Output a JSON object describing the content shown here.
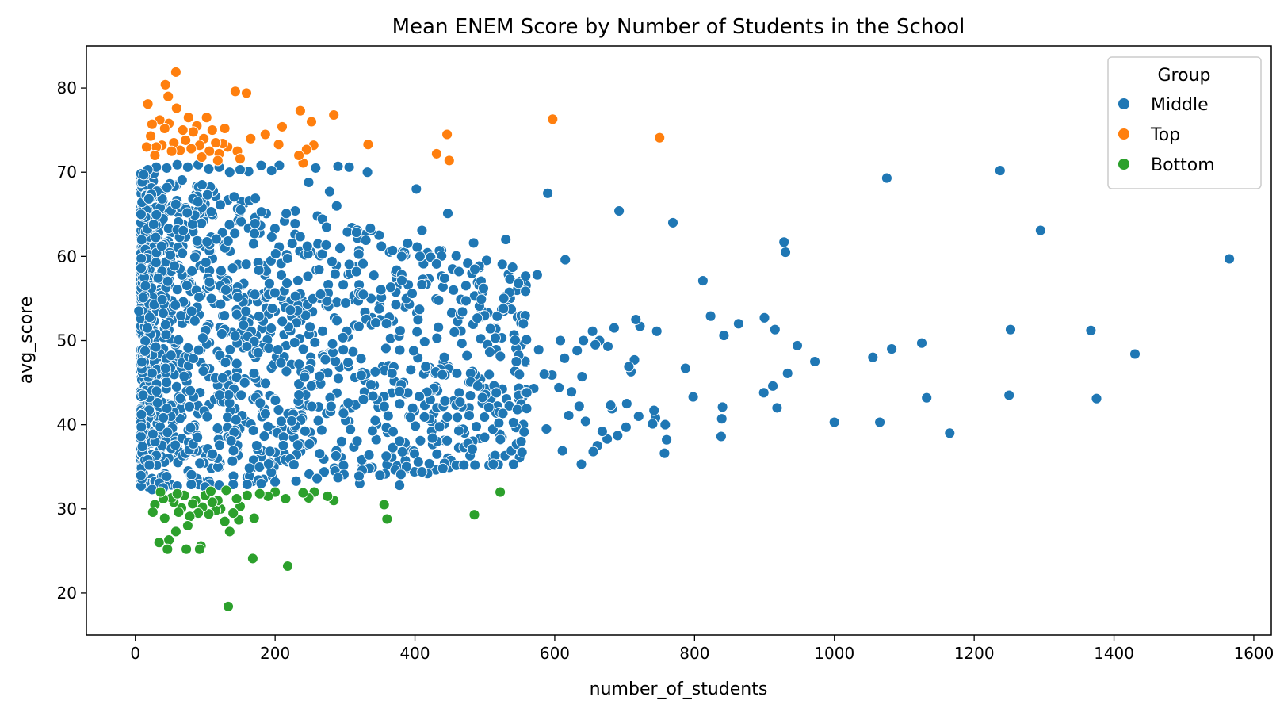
{
  "chart_data": {
    "type": "scatter",
    "title": "Mean ENEM Score by Number of Students in the School",
    "xlabel": "number_of_students",
    "ylabel": "avg_score",
    "xlim": [
      -70,
      1625
    ],
    "ylim": [
      15,
      85
    ],
    "xticks": [
      0,
      200,
      400,
      600,
      800,
      1000,
      1200,
      1400,
      1600
    ],
    "yticks": [
      20,
      30,
      40,
      50,
      60,
      70,
      80
    ],
    "grid": false,
    "legend": {
      "title": "Group",
      "placement": "top-right"
    },
    "series": [
      {
        "name": "Middle",
        "color": "#1f77b4",
        "points": [
          [
            1565,
            59.7
          ],
          [
            1430,
            48.4
          ],
          [
            1375,
            43.1
          ],
          [
            1367,
            51.2
          ],
          [
            1295,
            63.1
          ],
          [
            1252,
            51.3
          ],
          [
            1250,
            43.5
          ],
          [
            1237,
            70.2
          ],
          [
            1165,
            39.0
          ],
          [
            1132,
            43.2
          ],
          [
            1125,
            49.7
          ],
          [
            1082,
            49.0
          ],
          [
            1075,
            69.3
          ],
          [
            1065,
            40.3
          ],
          [
            1055,
            48.0
          ],
          [
            1000,
            40.3
          ],
          [
            972,
            47.5
          ],
          [
            947,
            49.4
          ],
          [
            933,
            46.1
          ],
          [
            930,
            60.5
          ],
          [
            928,
            61.7
          ],
          [
            918,
            42.0
          ],
          [
            915,
            51.3
          ],
          [
            912,
            44.6
          ],
          [
            900,
            52.7
          ],
          [
            899,
            43.8
          ],
          [
            863,
            52.0
          ],
          [
            842,
            50.6
          ],
          [
            840,
            42.1
          ],
          [
            839,
            40.7
          ],
          [
            838,
            38.6
          ],
          [
            823,
            52.9
          ],
          [
            812,
            57.1
          ],
          [
            798,
            43.3
          ],
          [
            787,
            46.7
          ],
          [
            769,
            64.0
          ],
          [
            760,
            38.2
          ],
          [
            758,
            40.0
          ],
          [
            757,
            36.6
          ],
          [
            746,
            51.1
          ],
          [
            744,
            40.8
          ],
          [
            742,
            41.7
          ],
          [
            740,
            40.1
          ],
          [
            722,
            51.7
          ],
          [
            720,
            41.0
          ],
          [
            716,
            52.5
          ],
          [
            714,
            47.7
          ],
          [
            709,
            46.3
          ],
          [
            706,
            46.9
          ],
          [
            703,
            42.5
          ],
          [
            702,
            39.7
          ],
          [
            692,
            65.4
          ],
          [
            690,
            38.7
          ],
          [
            685,
            51.5
          ],
          [
            682,
            41.9
          ],
          [
            680,
            42.3
          ],
          [
            676,
            49.3
          ],
          [
            675,
            38.3
          ],
          [
            668,
            39.2
          ],
          [
            664,
            50.0
          ],
          [
            661,
            37.5
          ],
          [
            658,
            49.5
          ],
          [
            655,
            36.8
          ],
          [
            654,
            51.1
          ],
          [
            644,
            40.4
          ],
          [
            641,
            50.0
          ],
          [
            639,
            45.7
          ],
          [
            638,
            35.3
          ],
          [
            635,
            42.2
          ],
          [
            632,
            48.8
          ],
          [
            624,
            43.9
          ],
          [
            620,
            41.1
          ],
          [
            615,
            59.6
          ],
          [
            611,
            36.9
          ],
          [
            614,
            47.9
          ],
          [
            608,
            50.0
          ],
          [
            606,
            44.4
          ],
          [
            596,
            45.9
          ],
          [
            590,
            67.5
          ],
          [
            588,
            39.5
          ],
          [
            585,
            46.0
          ],
          [
            577,
            48.9
          ],
          [
            575,
            57.8
          ],
          [
            570,
            44.3
          ],
          [
            560,
            43.8
          ],
          [
            555,
            52.0
          ],
          [
            552,
            38.0
          ],
          [
            548,
            56.8
          ],
          [
            545,
            47.5
          ],
          [
            541,
            35.3
          ],
          [
            530,
            62.0
          ],
          [
            527,
            55.0
          ],
          [
            520,
            40.2
          ],
          [
            515,
            50.3
          ],
          [
            512,
            35.3
          ],
          [
            508,
            51.4
          ],
          [
            498,
            56.2
          ],
          [
            495,
            54.9
          ],
          [
            490,
            44.6
          ],
          [
            484,
            61.6
          ],
          [
            482,
            37.1
          ],
          [
            468,
            53.4
          ],
          [
            463,
            58.2
          ],
          [
            460,
            46.1
          ],
          [
            455,
            56.0
          ],
          [
            447,
            65.1
          ],
          [
            446,
            38.1
          ],
          [
            442,
            48.0
          ],
          [
            431,
            59.1
          ],
          [
            425,
            38.4
          ],
          [
            418,
            34.2
          ],
          [
            410,
            63.1
          ],
          [
            402,
            68.0
          ],
          [
            396,
            55.6
          ],
          [
            388,
            35.0
          ],
          [
            381,
            60.0
          ],
          [
            378,
            32.8
          ],
          [
            368,
            60.7
          ],
          [
            352,
            61.2
          ],
          [
            340,
            43.4
          ],
          [
            332,
            70.0
          ],
          [
            321,
            33.0
          ],
          [
            306,
            70.6
          ],
          [
            290,
            70.7
          ],
          [
            288,
            66.0
          ],
          [
            287,
            36.3
          ],
          [
            278,
            67.7
          ],
          [
            258,
            70.5
          ],
          [
            248,
            68.8
          ],
          [
            206,
            70.8
          ],
          [
            195,
            70.2
          ],
          [
            180,
            70.8
          ],
          [
            162,
            70.1
          ],
          [
            150,
            70.3
          ],
          [
            135,
            70.0
          ],
          [
            120,
            70.6
          ],
          [
            105,
            70.4
          ],
          [
            90,
            70.9
          ],
          [
            75,
            70.6
          ],
          [
            60,
            70.9
          ],
          [
            45,
            70.5
          ],
          [
            30,
            70.6
          ],
          [
            18,
            70.3
          ],
          [
            12,
            69.7
          ],
          [
            5,
            53.5
          ],
          [
            10,
            37.4
          ],
          [
            20,
            35.2
          ],
          [
            24,
            32.3
          ],
          [
            40,
            32.5
          ],
          [
            60,
            32.7
          ],
          [
            80,
            32.9
          ],
          [
            100,
            32.6
          ],
          [
            120,
            32.8
          ],
          [
            140,
            32.9
          ],
          [
            160,
            32.9
          ],
          [
            180,
            33.0
          ],
          [
            200,
            33.2
          ],
          [
            230,
            33.3
          ],
          [
            260,
            33.6
          ],
          [
            290,
            33.7
          ],
          [
            320,
            33.9
          ],
          [
            350,
            34.0
          ],
          [
            380,
            34.1
          ],
          [
            410,
            34.4
          ],
          [
            440,
            34.8
          ],
          [
            470,
            35.2
          ]
        ],
        "density": {
          "count": 1500,
          "x_range": [
            8,
            560
          ],
          "y_range": [
            32.5,
            70.5
          ]
        }
      },
      {
        "name": "Top",
        "color": "#ff7f0e",
        "points": [
          [
            750,
            74.1
          ],
          [
            597,
            76.3
          ],
          [
            449,
            71.4
          ],
          [
            446,
            74.5
          ],
          [
            431,
            72.2
          ],
          [
            333,
            73.3
          ],
          [
            284,
            76.8
          ],
          [
            252,
            76.0
          ],
          [
            255,
            73.2
          ],
          [
            245,
            72.7
          ],
          [
            240,
            71.1
          ],
          [
            236,
            77.3
          ],
          [
            234,
            72.0
          ],
          [
            210,
            75.4
          ],
          [
            205,
            73.3
          ],
          [
            186,
            74.5
          ],
          [
            165,
            74.0
          ],
          [
            159,
            79.4
          ],
          [
            143,
            79.6
          ],
          [
            146,
            72.5
          ],
          [
            132,
            73.0
          ],
          [
            128,
            75.2
          ],
          [
            125,
            73.4
          ],
          [
            120,
            72.2
          ],
          [
            115,
            73.5
          ],
          [
            110,
            75.0
          ],
          [
            106,
            72.5
          ],
          [
            102,
            76.5
          ],
          [
            98,
            74.0
          ],
          [
            92,
            73.2
          ],
          [
            88,
            75.5
          ],
          [
            83,
            74.8
          ],
          [
            80,
            72.8
          ],
          [
            76,
            76.5
          ],
          [
            72,
            73.8
          ],
          [
            68,
            75.0
          ],
          [
            64,
            72.6
          ],
          [
            59,
            77.6
          ],
          [
            58,
            81.9
          ],
          [
            55,
            73.5
          ],
          [
            52,
            72.5
          ],
          [
            48,
            75.8
          ],
          [
            47,
            79.0
          ],
          [
            43,
            80.4
          ],
          [
            42,
            75.2
          ],
          [
            38,
            73.2
          ],
          [
            35,
            76.2
          ],
          [
            30,
            73.0
          ],
          [
            28,
            72.0
          ],
          [
            24,
            75.7
          ],
          [
            22,
            74.3
          ],
          [
            18,
            78.1
          ],
          [
            16,
            73.0
          ],
          [
            118,
            71.4
          ],
          [
            95,
            71.8
          ],
          [
            150,
            71.6
          ]
        ]
      },
      {
        "name": "Bottom",
        "color": "#2ca02c",
        "points": [
          [
            522,
            32.0
          ],
          [
            485,
            29.3
          ],
          [
            360,
            28.8
          ],
          [
            356,
            30.5
          ],
          [
            284,
            31.0
          ],
          [
            275,
            31.5
          ],
          [
            256,
            32.0
          ],
          [
            248,
            31.3
          ],
          [
            240,
            31.9
          ],
          [
            218,
            23.2
          ],
          [
            215,
            31.2
          ],
          [
            200,
            32.0
          ],
          [
            190,
            31.5
          ],
          [
            178,
            31.8
          ],
          [
            168,
            24.1
          ],
          [
            170,
            28.9
          ],
          [
            160,
            31.6
          ],
          [
            150,
            30.3
          ],
          [
            148,
            28.7
          ],
          [
            145,
            31.2
          ],
          [
            140,
            29.5
          ],
          [
            135,
            27.3
          ],
          [
            133,
            18.4
          ],
          [
            130,
            32.2
          ],
          [
            128,
            28.5
          ],
          [
            122,
            30.0
          ],
          [
            118,
            31.0
          ],
          [
            115,
            29.8
          ],
          [
            110,
            30.8
          ],
          [
            105,
            29.4
          ],
          [
            100,
            31.6
          ],
          [
            96,
            30.2
          ],
          [
            94,
            25.6
          ],
          [
            92,
            25.2
          ],
          [
            90,
            29.5
          ],
          [
            86,
            31.0
          ],
          [
            82,
            30.6
          ],
          [
            78,
            29.1
          ],
          [
            75,
            28.0
          ],
          [
            73,
            25.2
          ],
          [
            70,
            31.6
          ],
          [
            66,
            30.1
          ],
          [
            62,
            29.6
          ],
          [
            58,
            27.3
          ],
          [
            55,
            30.8
          ],
          [
            52,
            31.3
          ],
          [
            48,
            26.3
          ],
          [
            46,
            25.2
          ],
          [
            42,
            28.9
          ],
          [
            40,
            31.2
          ],
          [
            36,
            32.0
          ],
          [
            34,
            26.0
          ],
          [
            28,
            30.5
          ],
          [
            25,
            29.6
          ],
          [
            60,
            31.8
          ],
          [
            108,
            32.1
          ]
        ]
      }
    ]
  }
}
